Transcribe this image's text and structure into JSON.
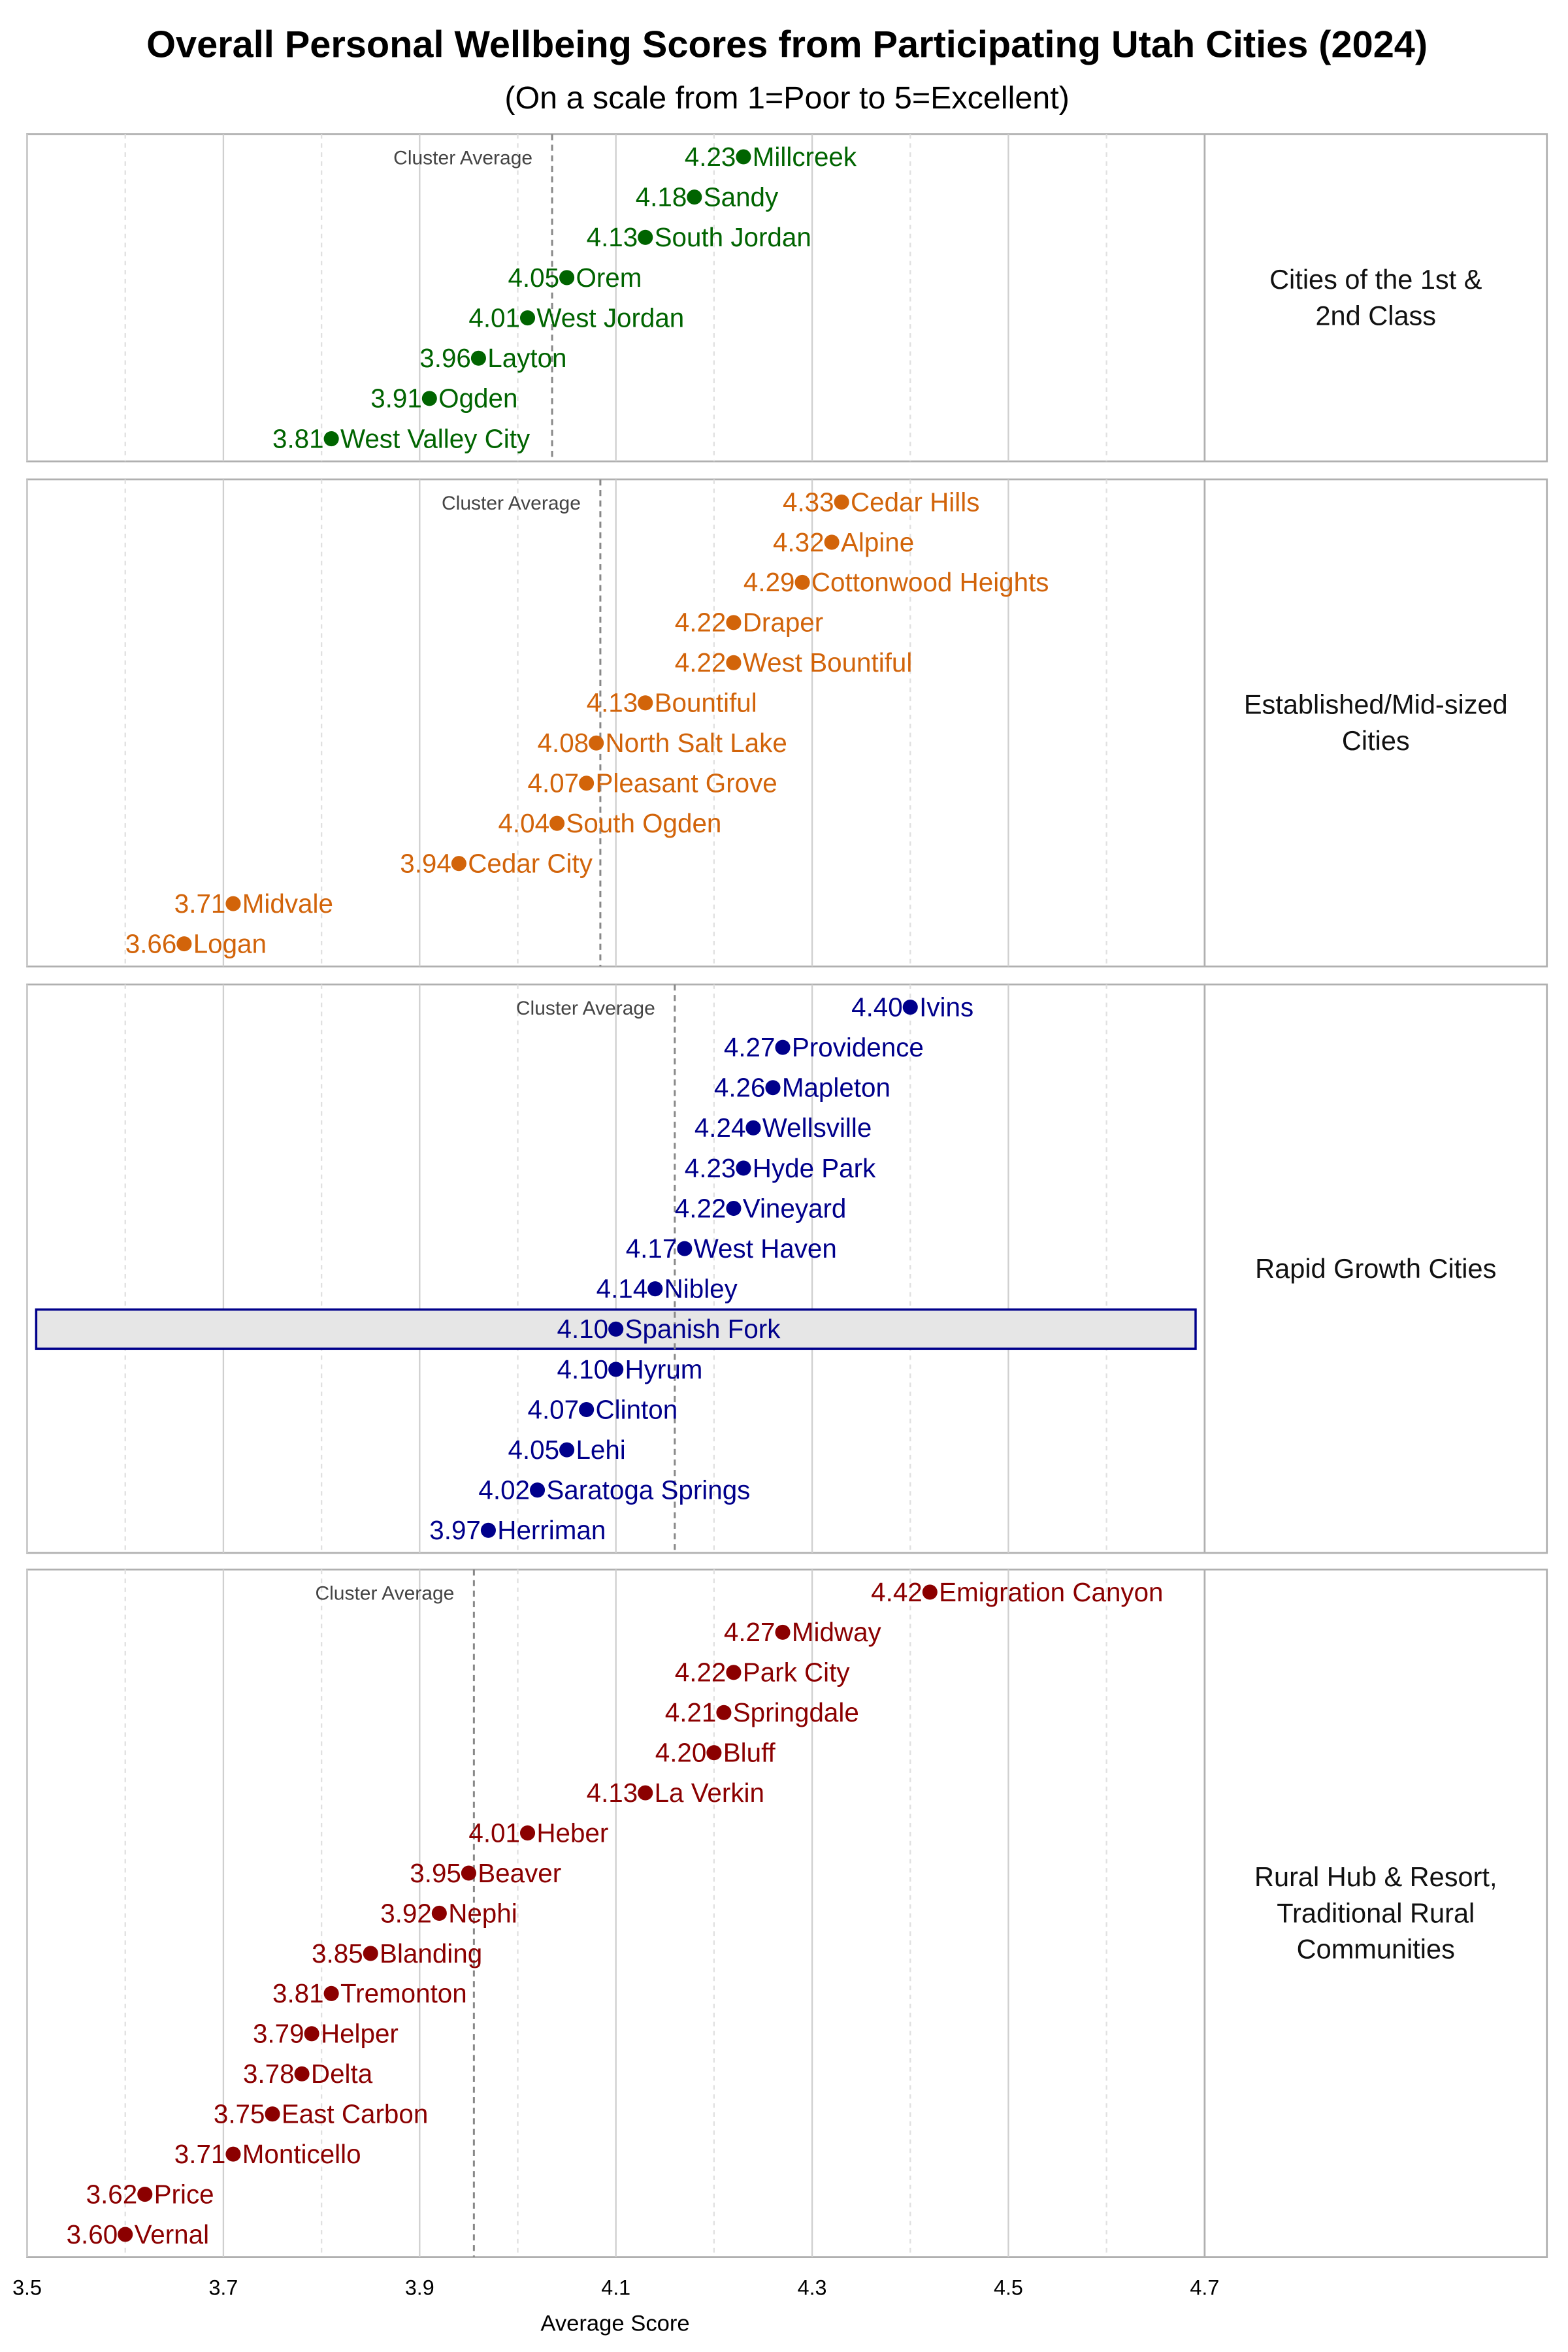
{
  "chart_data": {
    "type": "scatter",
    "title": "Overall Personal Wellbeing Scores from Participating Utah Cities (2024)",
    "subtitle": "(On a scale from 1=Poor to 5=Excellent)",
    "xlabel": "Average Score",
    "xlim": [
      3.5,
      4.7
    ],
    "xticks": [
      "3.5",
      "3.7",
      "3.9",
      "4.1",
      "4.3",
      "4.5",
      "4.7"
    ],
    "grid": true,
    "reference_line_label": "Cluster Average",
    "highlighted_city": "Spanish Fork",
    "highlight_color": "#00008B",
    "panels": [
      {
        "facet_label": [
          "Cities of the 1st &",
          "2nd Class"
        ],
        "color": "#006400",
        "cities": [
          "Millcreek",
          "Sandy",
          "South Jordan",
          "Orem",
          "West Jordan",
          "Layton",
          "Ogden",
          "West Valley City"
        ],
        "values": [
          4.23,
          4.18,
          4.13,
          4.05,
          4.01,
          3.96,
          3.91,
          3.81
        ]
      },
      {
        "facet_label": [
          "Established/Mid-sized",
          "Cities"
        ],
        "color": "#D2640A",
        "cities": [
          "Cedar Hills",
          "Alpine",
          "Cottonwood Heights",
          "Draper",
          "West Bountiful",
          "Bountiful",
          "North Salt Lake",
          "Pleasant Grove",
          "South Ogden",
          "Cedar City",
          "Midvale",
          "Logan"
        ],
        "values": [
          4.33,
          4.32,
          4.29,
          4.22,
          4.22,
          4.13,
          4.08,
          4.07,
          4.04,
          3.94,
          3.71,
          3.66
        ]
      },
      {
        "facet_label": [
          "Rapid Growth Cities"
        ],
        "color": "#00008B",
        "cities": [
          "Ivins",
          "Providence",
          "Mapleton",
          "Wellsville",
          "Hyde Park",
          "Vineyard",
          "West Haven",
          "Nibley",
          "Spanish Fork",
          "Hyrum",
          "Clinton",
          "Lehi",
          "Saratoga Springs",
          "Herriman"
        ],
        "values": [
          4.4,
          4.27,
          4.26,
          4.24,
          4.23,
          4.22,
          4.17,
          4.14,
          4.1,
          4.1,
          4.07,
          4.05,
          4.02,
          3.97
        ]
      },
      {
        "facet_label": [
          "Rural Hub & Resort,",
          "Traditional Rural",
          "Communities"
        ],
        "color": "#8B0000",
        "cities": [
          "Emigration Canyon",
          "Midway",
          "Park City",
          "Springdale",
          "Bluff",
          "La Verkin",
          "Heber",
          "Beaver",
          "Nephi",
          "Blanding",
          "Tremonton",
          "Helper",
          "Delta",
          "East Carbon",
          "Monticello",
          "Price",
          "Vernal"
        ],
        "values": [
          4.42,
          4.27,
          4.22,
          4.21,
          4.2,
          4.13,
          4.01,
          3.95,
          3.92,
          3.85,
          3.81,
          3.79,
          3.78,
          3.75,
          3.71,
          3.62,
          3.6
        ]
      }
    ]
  }
}
